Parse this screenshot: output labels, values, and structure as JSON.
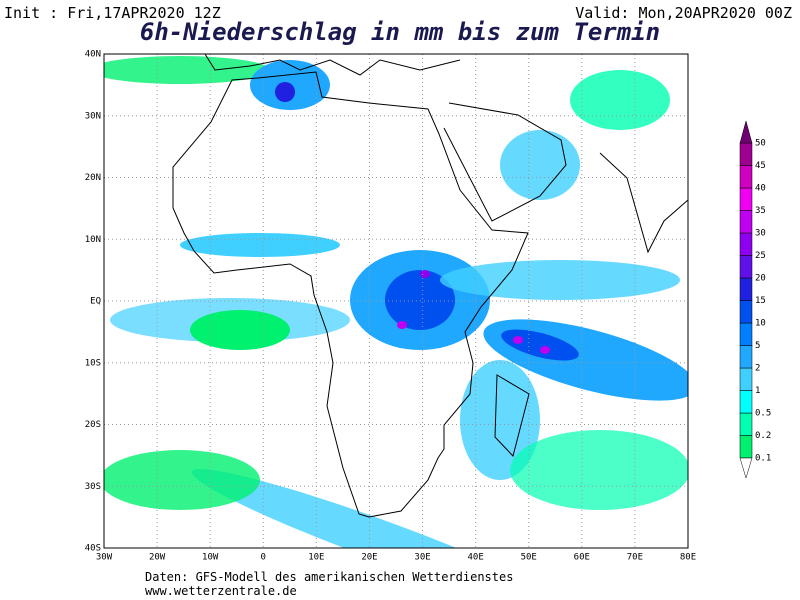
{
  "header": {
    "init": "Init : Fri,17APR2020 12Z",
    "valid": "Valid: Mon,20APR2020 00Z",
    "title": "6h-Niederschlag in mm bis zum Termin"
  },
  "map": {
    "lat_labels": [
      "40N",
      "30N",
      "20N",
      "10N",
      "EQ",
      "10S",
      "20S",
      "30S",
      "40S"
    ],
    "lon_labels": [
      "30W",
      "20W",
      "10W",
      "0",
      "10E",
      "20E",
      "30E",
      "40E",
      "50E",
      "60E",
      "70E",
      "80E"
    ]
  },
  "colorbar": {
    "labels": [
      "0.1",
      "0.2",
      "0.5",
      "1",
      "2",
      "5",
      "10",
      "15",
      "20",
      "25",
      "30",
      "35",
      "40",
      "45",
      "50"
    ],
    "colors": [
      "#00f070",
      "#00ffb0",
      "#00ffff",
      "#40d0ff",
      "#20a8ff",
      "#0080ff",
      "#0050f0",
      "#2020e0",
      "#6010e8",
      "#9000f0",
      "#c000f0",
      "#f000f0",
      "#d000c0",
      "#a00090",
      "#700070"
    ]
  },
  "footer": {
    "source": "Daten: GFS-Modell des amerikanischen Wetterdienstes",
    "url": "www.wetterzentrale.de"
  }
}
